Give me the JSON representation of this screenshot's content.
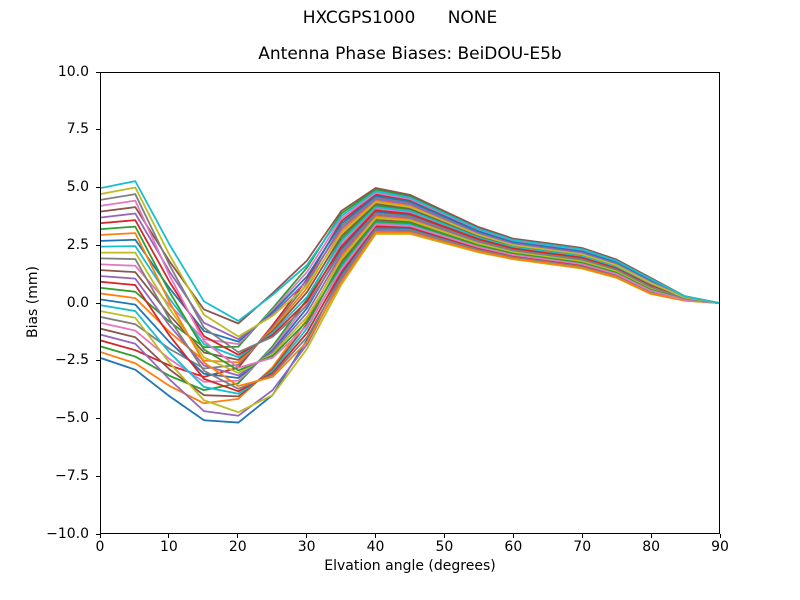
{
  "chart_data": {
    "type": "line",
    "suptitle": "HXCGPS1000      NONE",
    "title": "Antenna Phase Biases: BeiDOU-E5b",
    "xlabel": "Elvation angle (degrees)",
    "ylabel": "Bias (mm)",
    "xlim": [
      0,
      90
    ],
    "ylim": [
      -10,
      10
    ],
    "xticks": [
      0,
      10,
      20,
      30,
      40,
      50,
      60,
      70,
      80,
      90
    ],
    "ytick_values": [
      10,
      7.5,
      5,
      2.5,
      0,
      -2.5,
      -5,
      -7.5,
      -10
    ],
    "ytick_labels": [
      "10.0",
      "7.5",
      "5.0",
      "2.5",
      "0.0",
      "−2.5",
      "−5.0",
      "−7.5",
      "−10.0"
    ],
    "grid": false,
    "legend": "none",
    "line_width": 1.8,
    "colors": [
      "#1f77b4",
      "#ff7f0e",
      "#2ca02c",
      "#d62728",
      "#9467bd",
      "#8c564b",
      "#e377c2",
      "#7f7f7f",
      "#bcbd22",
      "#17becf"
    ],
    "x": [
      0,
      5,
      10,
      15,
      20,
      25,
      30,
      35,
      40,
      45,
      50,
      55,
      60,
      65,
      70,
      75,
      80,
      85,
      90
    ],
    "series": [
      {
        "values": [
          -2.4,
          -2.9,
          -4.06,
          -5.1,
          -5.2,
          -4.0,
          -1.6,
          1.24,
          3.28,
          3.23,
          2.79,
          2.35,
          2.02,
          1.82,
          1.62,
          1.21,
          0.5,
          0.13,
          0
        ]
      },
      {
        "values": [
          -2.14,
          -2.62,
          -3.61,
          -4.36,
          -4.17,
          -2.79,
          -0.72,
          2.01,
          3.76,
          3.65,
          3.13,
          2.62,
          2.24,
          2.04,
          1.84,
          1.4,
          0.67,
          0.18,
          0
        ]
      },
      {
        "values": [
          -1.89,
          -2.33,
          -3.17,
          -3.79,
          -3.49,
          -1.88,
          0.16,
          2.79,
          4.24,
          4.05,
          3.47,
          2.88,
          2.46,
          2.26,
          2.06,
          1.6,
          0.83,
          0.22,
          0
        ]
      },
      {
        "values": [
          -1.63,
          -2.05,
          -2.72,
          -3.21,
          -2.81,
          -0.97,
          1.04,
          3.56,
          4.72,
          4.47,
          3.81,
          3.15,
          2.68,
          2.48,
          2.28,
          1.79,
          1.0,
          0.27,
          0
        ]
      },
      {
        "values": [
          -1.38,
          -1.77,
          -3.33,
          -4.7,
          -4.9,
          -3.79,
          -1.8,
          1.02,
          3.14,
          3.12,
          2.7,
          2.28,
          1.96,
          1.76,
          1.56,
          1.16,
          0.45,
          0.11,
          0
        ]
      },
      {
        "values": [
          -1.12,
          -1.49,
          -2.89,
          -4.01,
          -4.06,
          -2.88,
          -0.91,
          1.79,
          3.62,
          3.53,
          3.03,
          2.54,
          2.18,
          1.98,
          1.78,
          1.35,
          0.62,
          0.16,
          0
        ]
      },
      {
        "values": [
          -0.87,
          -1.2,
          -2.44,
          -3.43,
          -3.38,
          -1.97,
          -0.03,
          2.56,
          4.1,
          3.94,
          3.37,
          2.81,
          2.4,
          2.2,
          2.0,
          1.54,
          0.79,
          0.21,
          0
        ]
      },
      {
        "values": [
          -0.61,
          -0.92,
          -2.0,
          -2.85,
          -2.69,
          -1.06,
          0.85,
          3.34,
          4.59,
          4.35,
          3.71,
          3.07,
          2.61,
          2.41,
          2.21,
          1.73,
          0.96,
          0.26,
          0
        ]
      },
      {
        "values": [
          -0.36,
          -0.64,
          -2.61,
          -4.23,
          -4.75,
          -4.0,
          -1.99,
          0.8,
          3.0,
          3.0,
          2.6,
          2.2,
          1.9,
          1.7,
          1.5,
          1.1,
          0.4,
          0.1,
          0
        ]
      },
      {
        "values": [
          -0.1,
          -0.35,
          -2.16,
          -3.65,
          -3.95,
          -2.96,
          -1.11,
          1.57,
          3.48,
          3.41,
          2.94,
          2.47,
          2.12,
          1.92,
          1.72,
          1.29,
          0.57,
          0.15,
          0
        ]
      },
      {
        "values": [
          0.15,
          -0.07,
          -1.71,
          -3.08,
          -3.26,
          -2.05,
          -0.22,
          2.35,
          3.97,
          3.82,
          3.28,
          2.73,
          2.33,
          2.13,
          1.93,
          1.49,
          0.74,
          0.2,
          0
        ]
      },
      {
        "values": [
          0.41,
          0.21,
          -1.27,
          -2.5,
          -2.58,
          -1.14,
          0.66,
          3.12,
          4.45,
          4.23,
          3.61,
          3.0,
          2.55,
          2.35,
          2.15,
          1.68,
          0.91,
          0.24,
          0
        ]
      },
      {
        "values": [
          0.66,
          0.49,
          -0.82,
          -1.92,
          -1.9,
          -0.23,
          1.54,
          3.89,
          4.93,
          4.64,
          3.95,
          3.26,
          2.77,
          2.57,
          2.37,
          1.87,
          1.08,
          0.29,
          0
        ]
      },
      {
        "values": [
          0.92,
          0.78,
          -1.43,
          -3.3,
          -3.84,
          -3.04,
          -1.3,
          1.35,
          3.35,
          3.29,
          2.84,
          2.39,
          2.06,
          1.86,
          1.66,
          1.24,
          0.52,
          0.13,
          0
        ]
      },
      {
        "values": [
          1.17,
          1.06,
          -0.99,
          -2.72,
          -3.15,
          -2.13,
          -0.42,
          2.12,
          3.83,
          3.7,
          3.18,
          2.66,
          2.27,
          2.07,
          1.87,
          1.43,
          0.69,
          0.18,
          0
        ]
      },
      {
        "values": [
          1.43,
          1.34,
          -0.54,
          -2.15,
          -2.47,
          -1.22,
          0.47,
          2.9,
          4.31,
          4.11,
          3.52,
          2.92,
          2.49,
          2.29,
          2.09,
          1.62,
          0.86,
          0.23,
          0
        ]
      },
      {
        "values": [
          1.68,
          1.62,
          -0.1,
          -1.57,
          -1.79,
          -0.31,
          1.35,
          3.67,
          4.79,
          4.52,
          3.86,
          3.19,
          2.71,
          2.51,
          2.31,
          1.82,
          1.03,
          0.28,
          0
        ]
      },
      {
        "values": [
          1.94,
          1.91,
          -0.71,
          -2.95,
          -3.73,
          -3.12,
          -1.49,
          1.13,
          3.21,
          3.18,
          2.74,
          2.31,
          1.99,
          1.79,
          1.59,
          1.18,
          0.47,
          0.12,
          0
        ]
      },
      {
        "values": [
          2.19,
          2.19,
          -0.26,
          -2.37,
          -3.04,
          -2.21,
          -0.61,
          1.9,
          3.69,
          3.59,
          3.08,
          2.58,
          2.21,
          2.01,
          1.81,
          1.38,
          0.64,
          0.17,
          0
        ]
      },
      {
        "values": [
          2.45,
          2.47,
          0.18,
          -1.79,
          -2.36,
          -1.3,
          0.27,
          2.68,
          4.17,
          4.0,
          3.42,
          2.84,
          2.43,
          2.23,
          2.03,
          1.57,
          0.81,
          0.22,
          0
        ]
      },
      {
        "values": [
          2.7,
          2.75,
          0.63,
          -1.22,
          -1.68,
          -0.39,
          1.16,
          3.45,
          4.66,
          4.41,
          3.76,
          3.11,
          2.64,
          2.44,
          2.24,
          1.76,
          0.98,
          0.27,
          0
        ]
      },
      {
        "values": [
          2.96,
          3.04,
          0.02,
          -2.59,
          -3.61,
          -3.21,
          -1.69,
          0.91,
          3.07,
          3.06,
          2.65,
          2.24,
          1.93,
          1.73,
          1.53,
          1.13,
          0.42,
          0.11,
          0
        ]
      },
      {
        "values": [
          3.21,
          3.32,
          0.47,
          -2.02,
          -2.93,
          -2.3,
          -0.8,
          1.68,
          3.55,
          3.47,
          2.99,
          2.5,
          2.15,
          1.95,
          1.75,
          1.32,
          0.59,
          0.16,
          0
        ]
      },
      {
        "values": [
          3.47,
          3.6,
          0.91,
          -1.44,
          -2.25,
          -1.39,
          0.08,
          2.45,
          4.03,
          3.88,
          3.32,
          2.77,
          2.37,
          2.17,
          1.97,
          1.51,
          0.76,
          0.2,
          0
        ]
      },
      {
        "values": [
          3.72,
          3.89,
          1.36,
          -0.86,
          -1.57,
          -0.48,
          0.96,
          3.23,
          4.52,
          4.29,
          3.66,
          3.03,
          2.58,
          2.38,
          2.18,
          1.71,
          0.93,
          0.25,
          0
        ]
      },
      {
        "values": [
          3.98,
          4.17,
          1.8,
          -0.28,
          -0.89,
          0.43,
          1.85,
          4.0,
          5.0,
          4.7,
          4.0,
          3.3,
          2.8,
          2.6,
          2.4,
          1.9,
          1.1,
          0.3,
          0
        ]
      },
      {
        "values": [
          4.23,
          4.45,
          1.19,
          -1.66,
          -2.82,
          -2.38,
          -1.0,
          1.46,
          3.41,
          3.35,
          2.89,
          2.43,
          2.09,
          1.89,
          1.69,
          1.27,
          0.54,
          0.14,
          0
        ]
      },
      {
        "values": [
          4.49,
          4.73,
          1.64,
          -1.08,
          -2.14,
          -1.47,
          -0.11,
          2.24,
          3.9,
          3.76,
          3.23,
          2.69,
          2.3,
          2.1,
          1.9,
          1.46,
          0.71,
          0.19,
          0
        ]
      },
      {
        "values": [
          4.74,
          5.02,
          2.08,
          -0.51,
          -1.46,
          -0.56,
          0.77,
          3.01,
          4.38,
          4.17,
          3.57,
          2.96,
          2.52,
          2.32,
          2.12,
          1.65,
          0.88,
          0.24,
          0
        ]
      },
      {
        "values": [
          5.0,
          5.3,
          2.53,
          0.07,
          -0.78,
          0.35,
          1.65,
          3.78,
          4.86,
          4.58,
          3.9,
          3.22,
          2.74,
          2.54,
          2.34,
          1.84,
          1.05,
          0.29,
          0
        ]
      }
    ]
  }
}
